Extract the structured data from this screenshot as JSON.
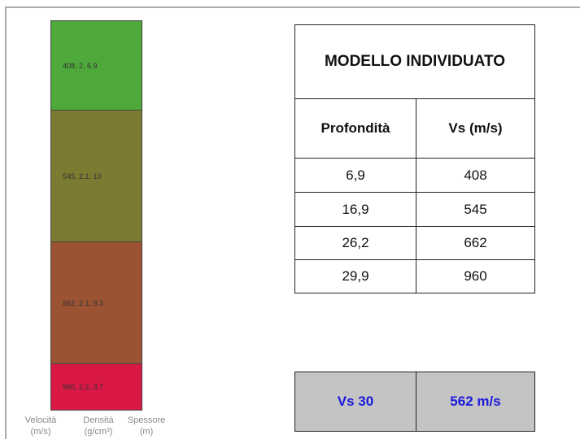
{
  "layers": [
    {
      "label": "408, 2, 6.9"
    },
    {
      "label": "545, 2.1, 10"
    },
    {
      "label": "662, 2.1, 9.3"
    },
    {
      "label": "960, 2.2, 3.7"
    }
  ],
  "axis_labels": [
    {
      "name": "Velocità",
      "unit": "(m/s)"
    },
    {
      "name": "Densità",
      "unit": "(g/cm³)"
    },
    {
      "name": "Spessore",
      "unit": "(m)"
    }
  ],
  "table": {
    "title": "MODELLO INDIVIDUATO",
    "header": [
      "Profondità",
      "Vs (m/s)"
    ],
    "rows": [
      [
        "6,9",
        "408"
      ],
      [
        "16,9",
        "545"
      ],
      [
        "26,2",
        "662"
      ],
      [
        "29,9",
        "960"
      ]
    ]
  },
  "summary": {
    "label": "Vs 30",
    "value": "562 m/s"
  }
}
